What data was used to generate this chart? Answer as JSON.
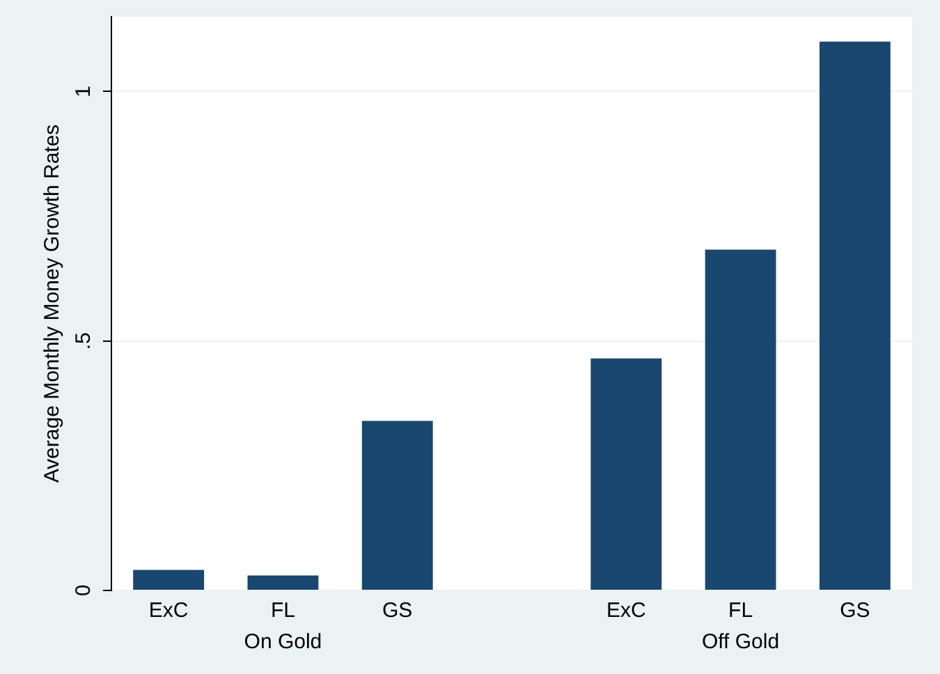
{
  "chart_data": {
    "type": "bar",
    "ylabel": "Average Monthly Money Growth Rates",
    "categories": [
      "ExC",
      "FL",
      "GS",
      null,
      "ExC",
      "FL",
      "GS"
    ],
    "values": [
      0.041,
      0.03,
      0.34,
      null,
      0.465,
      0.683,
      1.1
    ],
    "color": "#1a476f",
    "ylim": [
      0,
      1.15
    ],
    "yticks": [
      0,
      {
        "value": 0.5,
        "label": ".5"
      },
      1
    ],
    "grid": "y",
    "legend": false,
    "annotations": [
      "On Gold",
      "Off Gold"
    ]
  }
}
